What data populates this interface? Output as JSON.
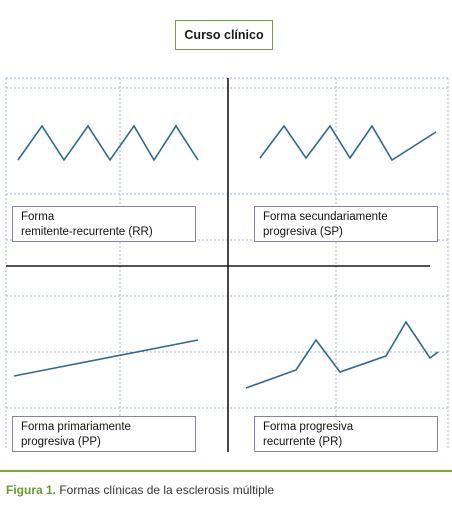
{
  "title": "Curso clínico",
  "panels": [
    {
      "key": "rr",
      "line1": "Forma",
      "line2": "remitente-recurrente (RR)"
    },
    {
      "key": "sp",
      "line1": "Forma secundariamente",
      "line2": "progresiva (SP)"
    },
    {
      "key": "pp",
      "line1": "Forma primariamente",
      "line2": "progresiva (PP)"
    },
    {
      "key": "pr",
      "line1": "Forma progresiva",
      "line2": "recurrente (PR)"
    }
  ],
  "caption": {
    "figure": "Figura 1.",
    "text": " Formas clínicas de la esclerosis múltiple"
  },
  "colors": {
    "curve": "#2e6a8c",
    "accent": "#6a9a2e",
    "box_border": "#8a7fa8",
    "grid": "#9bb8cc",
    "axis": "#1a1a1a"
  }
}
